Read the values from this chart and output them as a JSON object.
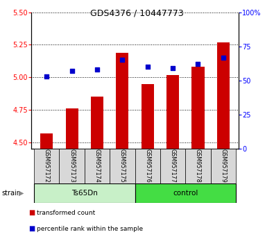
{
  "title": "GDS4376 / 10447773",
  "samples": [
    "GSM957172",
    "GSM957173",
    "GSM957174",
    "GSM957175",
    "GSM957176",
    "GSM957177",
    "GSM957178",
    "GSM957179"
  ],
  "red_values": [
    4.57,
    4.76,
    4.85,
    5.19,
    4.95,
    5.02,
    5.08,
    5.27
  ],
  "blue_values": [
    53,
    57,
    58,
    65,
    60,
    59,
    62,
    67
  ],
  "ylim_left": [
    4.45,
    5.5
  ],
  "ylim_right": [
    0,
    100
  ],
  "yticks_left": [
    4.5,
    4.75,
    5.0,
    5.25,
    5.5
  ],
  "yticks_right": [
    0,
    25,
    50,
    75,
    100
  ],
  "bar_color": "#cc0000",
  "dot_color": "#0000cc",
  "sample_bg_color": "#d8d8d8",
  "ts65dn_color": "#c8f0c8",
  "control_color": "#44dd44",
  "bar_width": 0.5,
  "bar_bottom": 4.45,
  "ts65dn_label": "Ts65Dn",
  "control_label": "control",
  "strain_label": "strain",
  "legend_bar": "transformed count",
  "legend_dot": "percentile rank within the sample",
  "title_fontsize": 9,
  "tick_fontsize": 7,
  "label_fontsize": 5.8
}
